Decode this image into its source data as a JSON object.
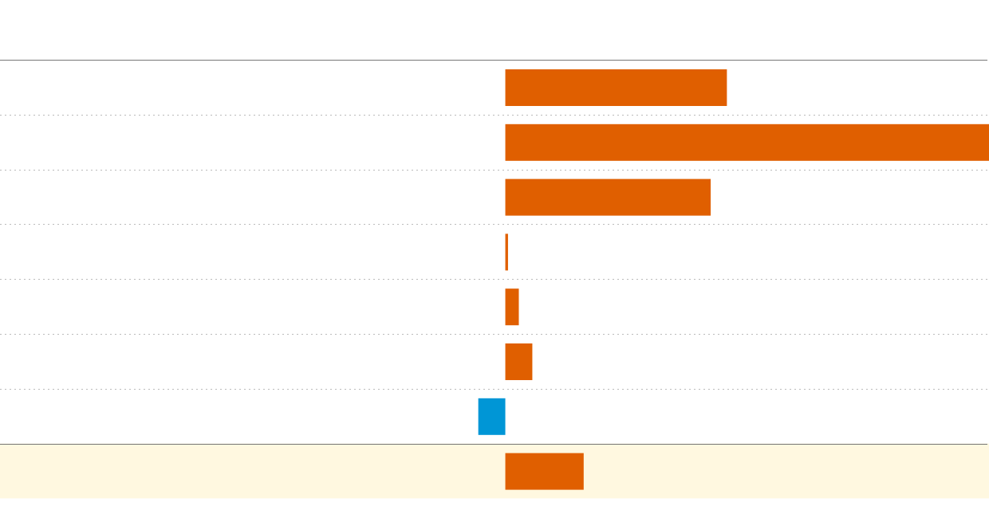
{
  "chart_data": {
    "type": "bar",
    "orientation": "horizontal",
    "categories": [
      "",
      "",
      "",
      "",
      "",
      "",
      "",
      ""
    ],
    "values": [
      8.2,
      17.9,
      7.6,
      0.1,
      0.5,
      1.0,
      -1.0,
      2.9
    ],
    "xlim": [
      -18.7,
      17.9
    ],
    "grid": true,
    "highlighted_row": 7,
    "colors": {
      "positive": "#e05f00",
      "negative": "#0096d6",
      "highlight_background": "#fff8e0",
      "grid": "#bbbbbb",
      "rule": "#777777"
    }
  }
}
